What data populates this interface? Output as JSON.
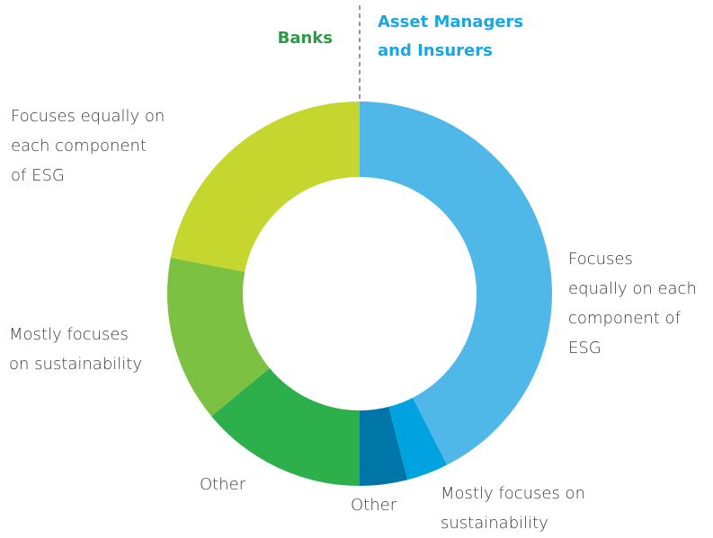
{
  "chart_data": {
    "type": "donut",
    "series": [
      {
        "name": "Asset Managers\nand Insurers",
        "color": "#1aa7e0",
        "labels": [
          "Focuses\nequally on each\ncomponent of\nESG",
          "Mostly focuses on\nsustainability",
          "Other"
        ],
        "values": [
          85,
          7,
          8
        ],
        "colors": [
          "#4fb8e8",
          "#00a3e0",
          "#0076a8"
        ]
      },
      {
        "name": "Banks",
        "color": "#2e9a48",
        "labels": [
          "Other",
          "Mostly focuses\non sustainability",
          "Focuses equally on\neach component\nof ESG"
        ],
        "values": [
          28,
          28,
          44
        ],
        "colors": [
          "#2db04b",
          "#7dc142",
          "#c5d62f"
        ]
      }
    ]
  }
}
